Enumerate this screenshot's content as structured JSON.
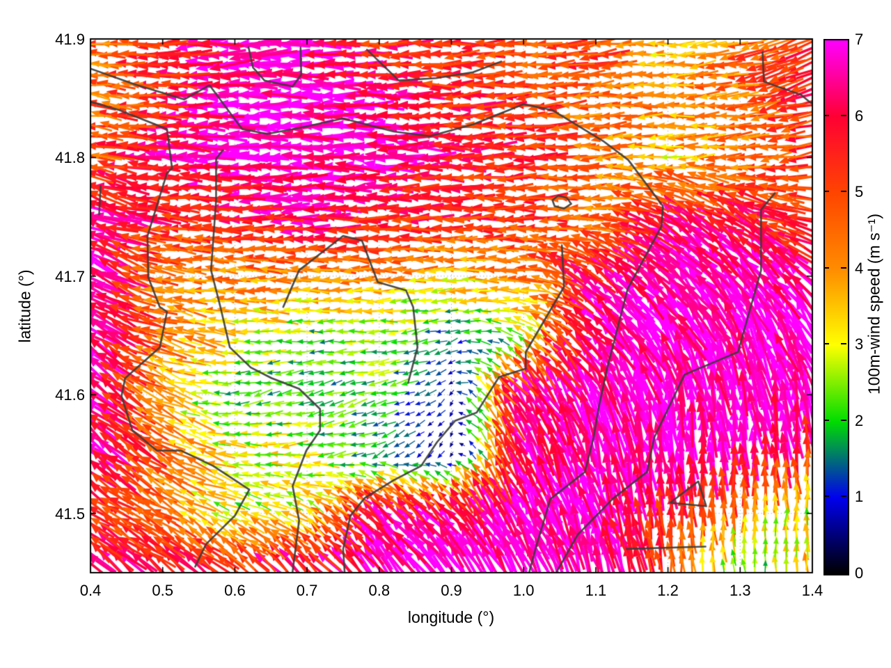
{
  "figure": {
    "background": "#ffffff",
    "border_color": "#000000",
    "grid_color": "#b5b5b5",
    "grid_style": "dotted"
  },
  "chart_data": {
    "type": "quiver",
    "title": "",
    "xlabel": "longitude (°)",
    "ylabel": "latitude (°)",
    "xlim": [
      0.4,
      1.4
    ],
    "ylim": [
      41.45,
      41.9
    ],
    "xticks": [
      0.4,
      0.5,
      0.6,
      0.7,
      0.8,
      0.9,
      1.0,
      1.1,
      1.2,
      1.3,
      1.4
    ],
    "xtick_labels": [
      "0.4",
      "0.5",
      "0.6",
      "0.7",
      "0.8",
      "0.9",
      "1.0",
      "1.1",
      "1.2",
      "1.3",
      "1.4"
    ],
    "yticks": [
      41.5,
      41.6,
      41.7,
      41.8,
      41.9
    ],
    "ytick_labels": [
      "41.5",
      "41.6",
      "41.7",
      "41.8",
      "41.9"
    ],
    "grid": "dotted at major ticks",
    "legend": "colorbar right",
    "colorbar": {
      "label": "100m-wind speed (m s⁻¹)",
      "min": 0,
      "max": 7,
      "ticks": [
        0,
        1,
        2,
        3,
        4,
        5,
        6,
        7
      ],
      "tick_labels": [
        "0",
        "1",
        "2",
        "3",
        "4",
        "5",
        "6",
        "7"
      ],
      "palette_stops": [
        [
          0,
          "#000000"
        ],
        [
          1,
          "#0000ee"
        ],
        [
          2,
          "#00dd00"
        ],
        [
          3,
          "#ffff00"
        ],
        [
          4,
          "#ff8c00"
        ],
        [
          5,
          "#ff4400"
        ],
        [
          6,
          "#ff0033"
        ],
        [
          7,
          "#ff00ff"
        ]
      ]
    },
    "field_grid": {
      "comment": "coarse wind field sampled from figure; direction = degrees CCW from east (180 = blowing toward west), speed in m/s",
      "lons": [
        0.4,
        0.5,
        0.6,
        0.7,
        0.8,
        0.9,
        1.0,
        1.1,
        1.2,
        1.3,
        1.4
      ],
      "lats": [
        41.9,
        41.85,
        41.8,
        41.75,
        41.7,
        41.65,
        41.6,
        41.55,
        41.5,
        41.45
      ],
      "speed": [
        [
          4.5,
          5.5,
          6.5,
          7.0,
          5.5,
          5.5,
          4.5,
          5.5,
          3.2,
          4.5,
          5.5
        ],
        [
          4.5,
          5.5,
          7.0,
          7.0,
          6.5,
          5.5,
          5.5,
          4.5,
          4.2,
          4.5,
          5.5
        ],
        [
          4.5,
          6.5,
          7.0,
          7.0,
          7.0,
          5.8,
          5.5,
          4.5,
          3.5,
          4.3,
          5.2
        ],
        [
          6.5,
          5.5,
          5.5,
          6.5,
          5.7,
          5.5,
          5.5,
          4.5,
          6.3,
          6.0,
          5.5
        ],
        [
          7.0,
          4.5,
          4.3,
          4.2,
          4.2,
          3.5,
          4.2,
          6.5,
          7.0,
          7.0,
          6.8
        ],
        [
          7.0,
          4.5,
          3.2,
          2.2,
          2.5,
          1.5,
          2.5,
          7.0,
          7.0,
          7.0,
          7.0
        ],
        [
          7.0,
          3.5,
          2.2,
          1.8,
          2.2,
          0.8,
          6.5,
          7.0,
          7.0,
          7.0,
          7.0
        ],
        [
          7.0,
          4.5,
          3.0,
          3.0,
          1.5,
          0.8,
          6.5,
          7.0,
          7.0,
          7.0,
          5.5
        ],
        [
          5.5,
          4.5,
          2.5,
          3.0,
          6.5,
          6.8,
          7.0,
          7.0,
          5.5,
          4.0,
          2.5
        ],
        [
          6.5,
          6.0,
          6.0,
          6.5,
          7.0,
          7.0,
          7.0,
          7.0,
          5.0,
          1.5,
          4.0
        ]
      ],
      "direction_deg": [
        [
          178,
          180,
          183,
          180,
          180,
          184,
          180,
          188,
          182,
          195,
          205
        ],
        [
          174,
          178,
          180,
          180,
          180,
          181,
          184,
          184,
          180,
          188,
          196
        ],
        [
          170,
          175,
          180,
          180,
          180,
          180,
          182,
          184,
          180,
          186,
          190
        ],
        [
          158,
          175,
          180,
          180,
          180,
          180,
          180,
          182,
          148,
          150,
          172
        ],
        [
          150,
          170,
          180,
          180,
          180,
          180,
          180,
          140,
          135,
          130,
          135
        ],
        [
          145,
          165,
          175,
          180,
          185,
          200,
          150,
          135,
          120,
          115,
          120
        ],
        [
          140,
          155,
          190,
          200,
          190,
          230,
          125,
          115,
          105,
          100,
          105
        ],
        [
          140,
          150,
          170,
          185,
          210,
          250,
          115,
          105,
          95,
          92,
          95
        ],
        [
          145,
          150,
          160,
          150,
          135,
          130,
          120,
          110,
          95,
          90,
          90
        ],
        [
          138,
          140,
          140,
          135,
          130,
          125,
          115,
          105,
          95,
          100,
          95
        ]
      ]
    },
    "arrow_lattice": {
      "cols": 69,
      "rows": 52
    },
    "contours": {
      "color": "#3c3c3c",
      "paths": [
        [
          [
            0.4,
            41.875
          ],
          [
            0.46,
            41.862
          ],
          [
            0.53,
            41.849
          ],
          [
            0.565,
            41.861
          ],
          [
            0.61,
            41.824
          ],
          [
            0.645,
            41.82
          ],
          [
            0.69,
            41.825
          ],
          [
            0.75,
            41.833
          ],
          [
            0.82,
            41.822
          ],
          [
            0.87,
            41.818
          ],
          [
            0.93,
            41.828
          ],
          [
            1.0,
            41.845
          ],
          [
            1.04,
            41.84
          ],
          [
            1.11,
            41.814
          ],
          [
            1.145,
            41.798
          ],
          [
            1.193,
            41.759
          ],
          [
            1.191,
            41.742
          ],
          [
            1.144,
            41.689
          ],
          [
            1.136,
            41.67
          ],
          [
            1.116,
            41.623
          ],
          [
            1.104,
            41.589
          ],
          [
            1.097,
            41.564
          ],
          [
            1.085,
            41.535
          ],
          [
            1.037,
            41.512
          ],
          [
            1.017,
            41.471
          ],
          [
            1.008,
            41.451
          ]
        ],
        [
          [
            0.4,
            41.847
          ],
          [
            0.44,
            41.84
          ],
          [
            0.506,
            41.824
          ],
          [
            0.513,
            41.791
          ],
          [
            0.506,
            41.787
          ],
          [
            0.479,
            41.734
          ],
          [
            0.48,
            41.699
          ],
          [
            0.496,
            41.674
          ],
          [
            0.506,
            41.67
          ],
          [
            0.496,
            41.64
          ],
          [
            0.448,
            41.614
          ],
          [
            0.443,
            41.599
          ],
          [
            0.458,
            41.57
          ],
          [
            0.492,
            41.553
          ],
          [
            0.525,
            41.553
          ],
          [
            0.57,
            41.54
          ],
          [
            0.62,
            41.52
          ],
          [
            0.6,
            41.498
          ],
          [
            0.56,
            41.474
          ],
          [
            0.545,
            41.455
          ]
        ],
        [
          [
            0.583,
            41.806
          ],
          [
            0.574,
            41.799
          ],
          [
            0.574,
            41.764
          ],
          [
            0.567,
            41.705
          ],
          [
            0.58,
            41.674
          ],
          [
            0.593,
            41.64
          ],
          [
            0.622,
            41.623
          ],
          [
            0.651,
            41.614
          ],
          [
            0.689,
            41.605
          ],
          [
            0.718,
            41.588
          ],
          [
            0.718,
            41.57
          ],
          [
            0.699,
            41.553
          ],
          [
            0.68,
            41.523
          ],
          [
            0.689,
            41.494
          ],
          [
            0.68,
            41.451
          ]
        ],
        [
          [
            0.619,
            41.893
          ],
          [
            0.625,
            41.876
          ],
          [
            0.641,
            41.865
          ],
          [
            0.68,
            41.86
          ],
          [
            0.692,
            41.87
          ],
          [
            0.691,
            41.893
          ]
        ],
        [
          [
            0.783,
            41.891
          ],
          [
            0.827,
            41.865
          ],
          [
            0.879,
            41.867
          ],
          [
            0.93,
            41.872
          ],
          [
            0.969,
            41.881
          ]
        ],
        [
          [
            1.331,
            41.889
          ],
          [
            1.333,
            41.864
          ],
          [
            1.384,
            41.853
          ],
          [
            1.398,
            41.846
          ]
        ],
        [
          [
            1.348,
            41.77
          ],
          [
            1.329,
            41.756
          ],
          [
            1.329,
            41.705
          ],
          [
            1.297,
            41.636
          ],
          [
            1.223,
            41.617
          ],
          [
            1.181,
            41.564
          ],
          [
            1.171,
            41.535
          ],
          [
            1.123,
            41.512
          ],
          [
            1.075,
            41.482
          ],
          [
            1.046,
            41.451
          ]
        ],
        [
          [
            1.04,
            41.764
          ],
          [
            1.048,
            41.768
          ],
          [
            1.06,
            41.766
          ],
          [
            1.066,
            41.761
          ],
          [
            1.056,
            41.757
          ],
          [
            1.043,
            41.759
          ],
          [
            1.04,
            41.764
          ]
        ],
        [
          [
            0.667,
            41.674
          ],
          [
            0.689,
            41.705
          ],
          [
            0.75,
            41.734
          ],
          [
            0.776,
            41.73
          ],
          [
            0.798,
            41.695
          ],
          [
            0.837,
            41.688
          ],
          [
            0.847,
            41.674
          ],
          [
            0.853,
            41.64
          ],
          [
            0.84,
            41.61
          ]
        ],
        [
          [
            1.053,
            41.726
          ],
          [
            1.056,
            41.691
          ],
          [
            1.003,
            41.636
          ],
          [
            1.003,
            41.622
          ],
          [
            0.966,
            41.615
          ],
          [
            0.935,
            41.585
          ],
          [
            0.905,
            41.578
          ],
          [
            0.88,
            41.56
          ],
          [
            0.858,
            41.54
          ],
          [
            0.82,
            41.528
          ],
          [
            0.78,
            41.513
          ],
          [
            0.76,
            41.498
          ],
          [
            0.75,
            41.47
          ],
          [
            0.752,
            41.451
          ]
        ],
        [
          [
            0.414,
            41.776
          ],
          [
            0.412,
            41.752
          ]
        ],
        [
          [
            1.242,
            41.527
          ],
          [
            1.203,
            41.509
          ],
          [
            1.253,
            41.506
          ],
          [
            1.242,
            41.527
          ]
        ],
        [
          [
            1.143,
            41.47
          ],
          [
            1.252,
            41.472
          ]
        ]
      ]
    }
  }
}
